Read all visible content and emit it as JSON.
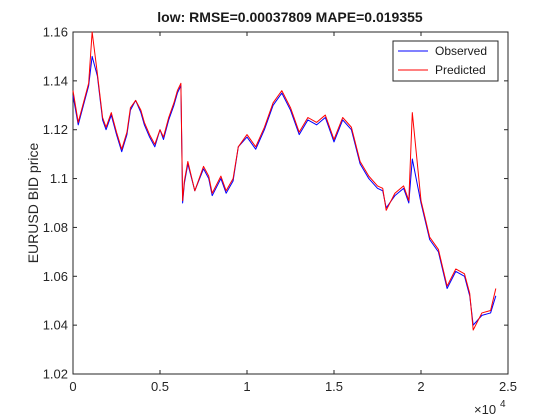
{
  "chart_data": {
    "type": "line",
    "title": "low: RMSE=0.00037809 MAPE=0.019355",
    "xlabel": "",
    "ylabel": "EURUSD BID price",
    "x_exponent_label": "×10",
    "x_exponent_power": "4",
    "xlim": [
      0,
      2.5
    ],
    "ylim": [
      1.02,
      1.16
    ],
    "x_ticks": [
      0,
      0.5,
      1,
      1.5,
      2,
      2.5
    ],
    "x_tick_labels": [
      "0",
      "0.5",
      "1",
      "1.5",
      "2",
      "2.5"
    ],
    "y_ticks": [
      1.02,
      1.04,
      1.06,
      1.08,
      1.1,
      1.12,
      1.14,
      1.16
    ],
    "y_tick_labels": [
      "1.02",
      "1.04",
      "1.06",
      "1.08",
      "1.1",
      "1.12",
      "1.14",
      "1.16"
    ],
    "grid": false,
    "legend_position": "top-right",
    "colors": {
      "observed": "#0000ff",
      "predicted": "#ff0000"
    },
    "series": [
      {
        "name": "Observed",
        "color": "#0000ff",
        "x": [
          0,
          0.03,
          0.06,
          0.09,
          0.11,
          0.14,
          0.17,
          0.19,
          0.22,
          0.25,
          0.28,
          0.31,
          0.33,
          0.36,
          0.39,
          0.41,
          0.44,
          0.47,
          0.5,
          0.52,
          0.55,
          0.58,
          0.6,
          0.62,
          0.63,
          0.64,
          0.66,
          0.7,
          0.75,
          0.78,
          0.8,
          0.85,
          0.88,
          0.92,
          0.95,
          1.0,
          1.05,
          1.1,
          1.15,
          1.2,
          1.25,
          1.3,
          1.35,
          1.4,
          1.45,
          1.5,
          1.55,
          1.6,
          1.65,
          1.7,
          1.75,
          1.78,
          1.8,
          1.85,
          1.9,
          1.93,
          1.95,
          2.0,
          2.05,
          2.1,
          2.15,
          2.2,
          2.25,
          2.28,
          2.3,
          2.35,
          2.4,
          2.43
        ],
        "values": [
          1.134,
          1.122,
          1.13,
          1.138,
          1.15,
          1.142,
          1.124,
          1.12,
          1.126,
          1.118,
          1.111,
          1.118,
          1.128,
          1.132,
          1.127,
          1.122,
          1.117,
          1.113,
          1.12,
          1.116,
          1.124,
          1.13,
          1.135,
          1.138,
          1.09,
          1.098,
          1.106,
          1.095,
          1.104,
          1.1,
          1.093,
          1.1,
          1.094,
          1.099,
          1.113,
          1.117,
          1.112,
          1.12,
          1.13,
          1.135,
          1.128,
          1.118,
          1.124,
          1.122,
          1.125,
          1.115,
          1.124,
          1.12,
          1.106,
          1.1,
          1.096,
          1.095,
          1.088,
          1.093,
          1.096,
          1.09,
          1.108,
          1.09,
          1.075,
          1.07,
          1.055,
          1.062,
          1.06,
          1.052,
          1.04,
          1.044,
          1.045,
          1.052
        ]
      },
      {
        "name": "Predicted",
        "color": "#ff0000",
        "x": [
          0,
          0.03,
          0.06,
          0.09,
          0.11,
          0.14,
          0.17,
          0.19,
          0.22,
          0.25,
          0.28,
          0.31,
          0.33,
          0.36,
          0.39,
          0.41,
          0.44,
          0.47,
          0.5,
          0.52,
          0.55,
          0.58,
          0.6,
          0.62,
          0.63,
          0.64,
          0.66,
          0.7,
          0.75,
          0.78,
          0.8,
          0.85,
          0.88,
          0.92,
          0.95,
          1.0,
          1.05,
          1.1,
          1.15,
          1.2,
          1.25,
          1.3,
          1.35,
          1.4,
          1.45,
          1.5,
          1.55,
          1.6,
          1.65,
          1.7,
          1.75,
          1.78,
          1.8,
          1.85,
          1.9,
          1.93,
          1.95,
          2.0,
          2.05,
          2.1,
          2.15,
          2.2,
          2.25,
          2.28,
          2.3,
          2.35,
          2.4,
          2.43
        ],
        "values": [
          1.136,
          1.123,
          1.131,
          1.139,
          1.16,
          1.143,
          1.125,
          1.121,
          1.127,
          1.119,
          1.112,
          1.119,
          1.129,
          1.132,
          1.128,
          1.123,
          1.118,
          1.114,
          1.12,
          1.117,
          1.125,
          1.131,
          1.136,
          1.139,
          1.091,
          1.099,
          1.107,
          1.095,
          1.105,
          1.101,
          1.094,
          1.101,
          1.095,
          1.1,
          1.113,
          1.118,
          1.113,
          1.121,
          1.131,
          1.136,
          1.129,
          1.119,
          1.125,
          1.123,
          1.126,
          1.116,
          1.125,
          1.121,
          1.107,
          1.101,
          1.097,
          1.096,
          1.087,
          1.094,
          1.097,
          1.091,
          1.127,
          1.091,
          1.076,
          1.071,
          1.056,
          1.063,
          1.061,
          1.053,
          1.038,
          1.045,
          1.046,
          1.055
        ]
      }
    ]
  }
}
